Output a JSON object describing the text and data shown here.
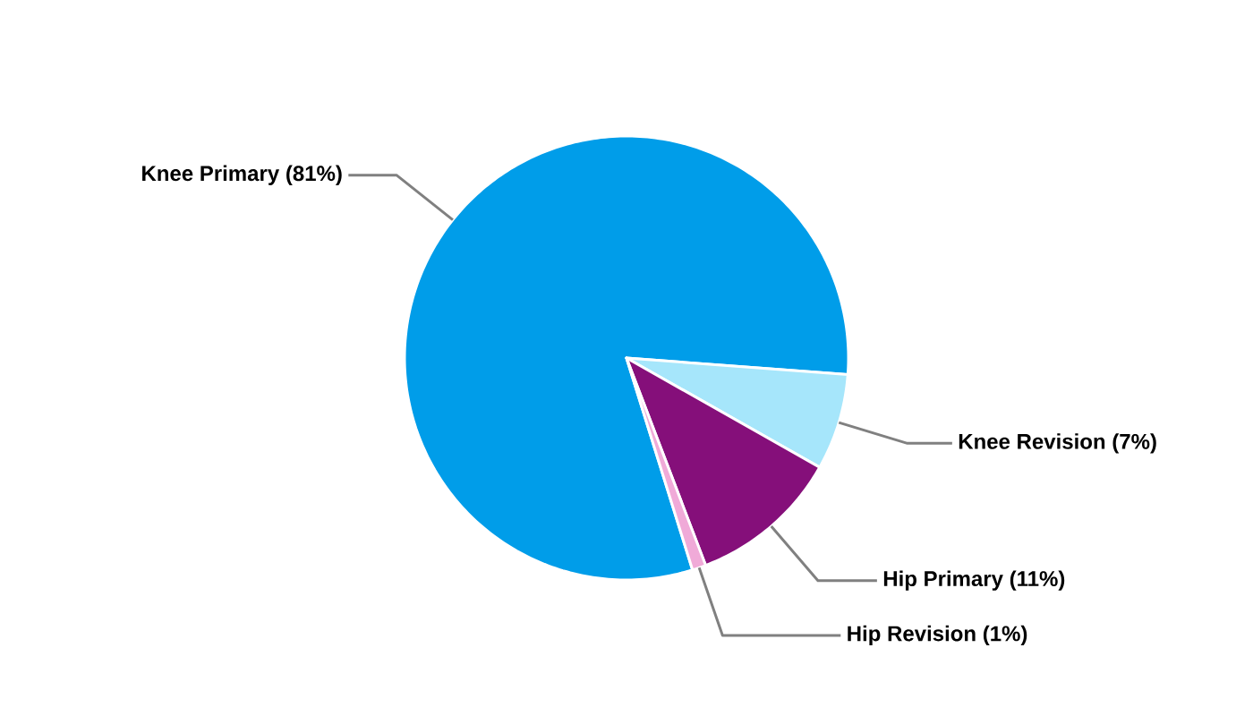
{
  "chart_data": {
    "type": "pie",
    "categories": [
      "Knee Primary",
      "Knee Revision",
      "Hip Primary",
      "Hip Revision"
    ],
    "values": [
      81,
      7,
      11,
      1
    ],
    "colors": [
      "#009de9",
      "#a6e6fb",
      "#850f7a",
      "#f0aad8"
    ],
    "value_labels": [
      "(81%)",
      "(7%)",
      "(11%)",
      "(1%)"
    ]
  }
}
